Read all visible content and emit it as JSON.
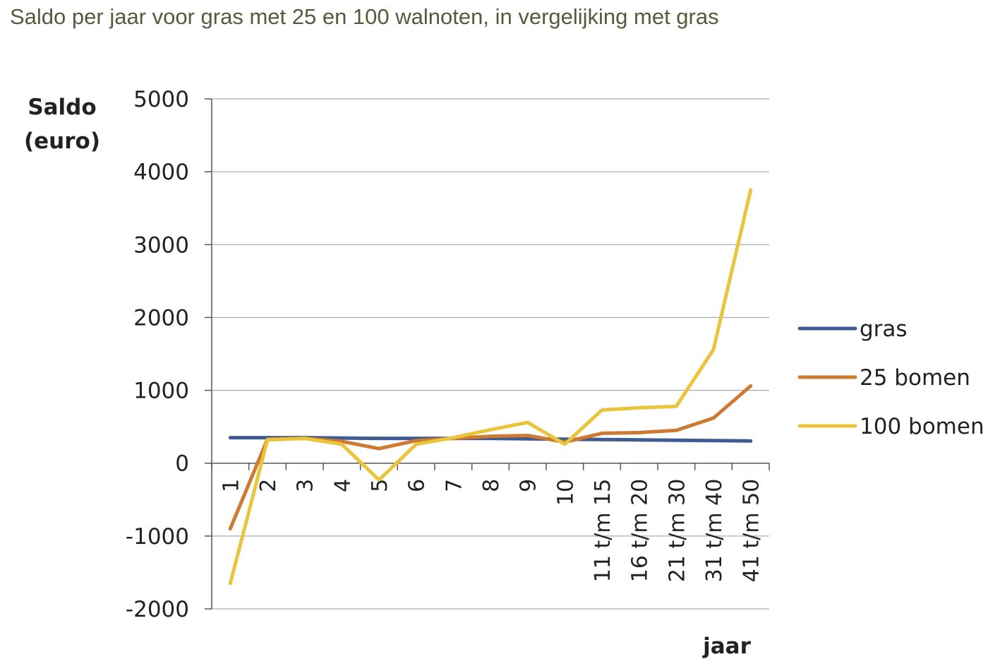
{
  "chart_data": {
    "type": "line",
    "title": "Saldo per jaar voor gras met 25 en 100 walnoten, in vergelijking met gras",
    "ylabel": [
      "Saldo",
      "(euro)"
    ],
    "xlabel": "jaar",
    "categories": [
      "1",
      "2",
      "3",
      "4",
      "5",
      "6",
      "7",
      "8",
      "9",
      "10",
      "11 t/m 15",
      "16 t/m 20",
      "21 t/m 30",
      "31 t/m 40",
      "41 t/m 50"
    ],
    "ylim": [
      -2000,
      5000
    ],
    "yticks": [
      5000,
      4000,
      3000,
      2000,
      1000,
      0,
      -1000,
      -2000
    ],
    "ytick_labels": [
      "5000",
      "4000",
      "3000",
      "2000",
      "1000",
      "0",
      "-1000",
      "-2000"
    ],
    "grid": "horizontal",
    "legend_position": "right",
    "series": [
      {
        "name": "gras",
        "color": "#3f5b92",
        "values": [
          350,
          350,
          350,
          345,
          340,
          340,
          340,
          340,
          335,
          330,
          325,
          320,
          315,
          310,
          305
        ]
      },
      {
        "name": "25 bomen",
        "color": "#cf7a33",
        "values": [
          -900,
          330,
          340,
          300,
          200,
          310,
          340,
          370,
          380,
          290,
          410,
          420,
          450,
          620,
          1060
        ]
      },
      {
        "name": "100 bomen",
        "color": "#eac43a",
        "values": [
          -1650,
          320,
          340,
          260,
          -230,
          260,
          350,
          460,
          560,
          260,
          730,
          760,
          780,
          1560,
          3750
        ]
      }
    ]
  }
}
